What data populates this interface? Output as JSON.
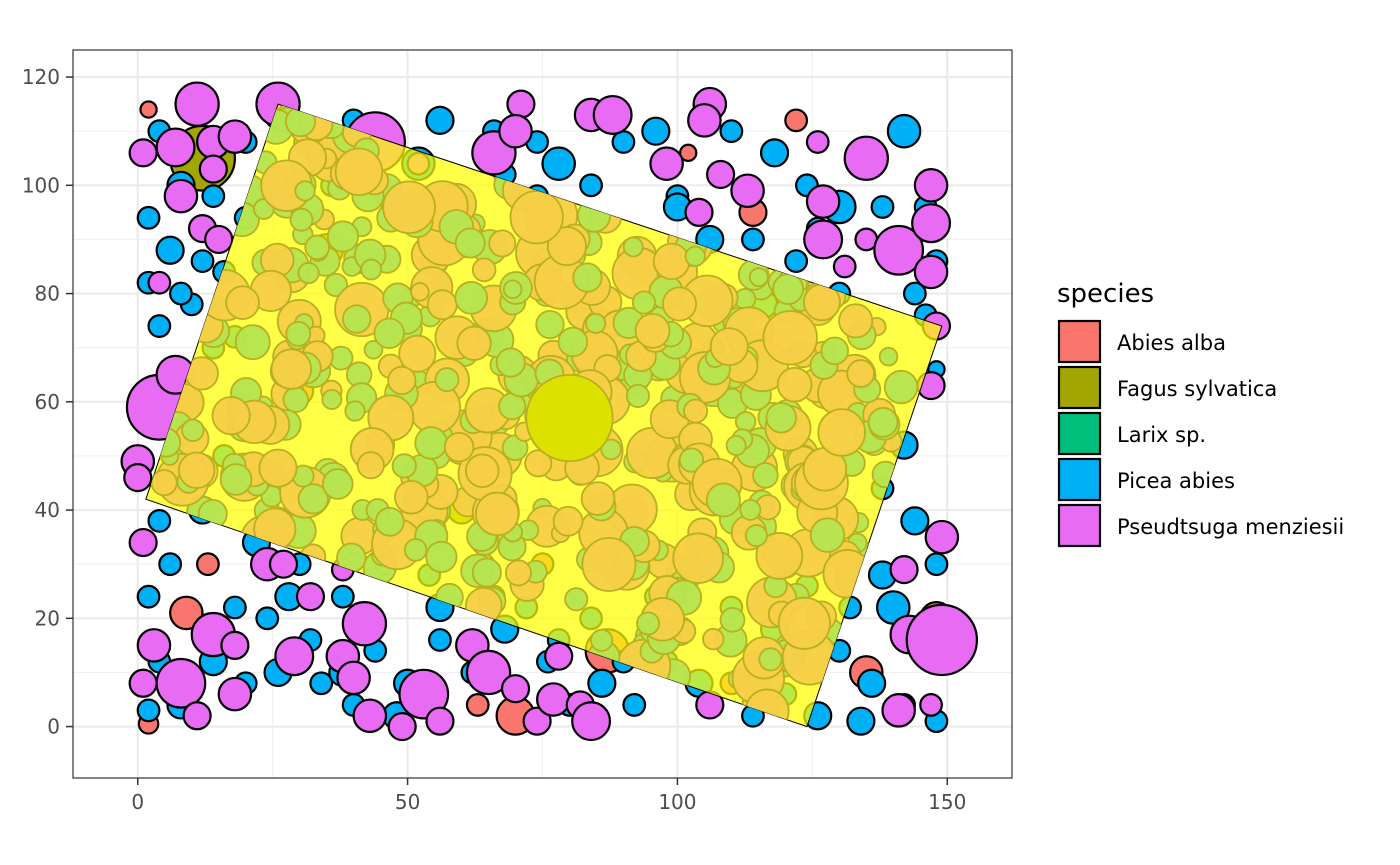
{
  "chart_data": {
    "type": "scatter",
    "title": "",
    "xlabel": "",
    "ylabel": "",
    "xlim": [
      -12,
      162
    ],
    "ylim": [
      -9.5,
      125
    ],
    "x_ticks": [
      0,
      50,
      100,
      150
    ],
    "y_ticks": [
      0,
      20,
      40,
      60,
      80,
      100,
      120
    ],
    "grid": true,
    "legend": {
      "title": "species",
      "position": "right",
      "entries": [
        {
          "name": "Abies alba",
          "color": "#F8766D"
        },
        {
          "name": "Fagus sylvatica",
          "color": "#A3A500"
        },
        {
          "name": "Larix sp.",
          "color": "#00BF7D"
        },
        {
          "name": "Picea abies",
          "color": "#00B0F6"
        },
        {
          "name": "Pseudtsuga menziesii",
          "color": "#E76BF3"
        }
      ]
    },
    "overlay_polygon": {
      "fill": "#FFFF00",
      "vertices": [
        [
          26,
          115
        ],
        [
          149,
          74
        ],
        [
          124,
          0
        ],
        [
          1.5,
          42
        ]
      ]
    },
    "overlay_colors": {
      "light": "#B5E550",
      "dark": "#F7CF47"
    },
    "series": [
      {
        "name": "Abies alba",
        "points": [
          [
            2,
            114,
            1.5
          ],
          [
            122,
            112,
            2
          ],
          [
            9,
            21,
            3
          ],
          [
            70,
            2,
            3.5
          ],
          [
            87,
            14,
            4
          ],
          [
            135,
            10,
            3
          ],
          [
            55,
            86,
            2.5
          ],
          [
            114,
            95,
            2.5
          ],
          [
            85,
            50,
            3
          ],
          [
            63,
            4,
            2
          ],
          [
            120,
            30,
            2.5
          ],
          [
            102,
            106,
            1.5
          ],
          [
            13,
            30,
            2
          ],
          [
            30,
            62,
            2.5
          ],
          [
            96,
            72,
            2
          ],
          [
            2,
            0.5,
            1.8
          ],
          [
            148,
            20,
            3
          ],
          [
            45,
            52,
            2.5
          ],
          [
            110,
            8,
            2
          ],
          [
            75,
            30,
            2
          ]
        ]
      },
      {
        "name": "Fagus sylvatica",
        "points": [
          [
            12,
            105,
            6
          ],
          [
            80,
            57,
            8
          ],
          [
            8,
            46,
            2.5
          ],
          [
            35,
            88,
            3
          ],
          [
            60,
            40,
            2.5
          ],
          [
            128,
            48,
            2.5
          ]
        ]
      },
      {
        "name": "Picea abies",
        "points": [
          [
            26,
            113,
            2.5
          ],
          [
            32,
            108,
            3
          ],
          [
            40,
            112,
            2
          ],
          [
            52,
            104,
            3
          ],
          [
            60,
            96,
            2.5
          ],
          [
            68,
            102,
            2
          ],
          [
            78,
            104,
            3
          ],
          [
            90,
            108,
            2
          ],
          [
            96,
            110,
            2.5
          ],
          [
            110,
            110,
            2
          ],
          [
            118,
            106,
            2.5
          ],
          [
            124,
            100,
            2
          ],
          [
            130,
            96,
            3
          ],
          [
            136,
            104,
            2.5
          ],
          [
            142,
            110,
            3
          ],
          [
            146,
            96,
            2
          ],
          [
            140,
            88,
            3
          ],
          [
            130,
            80,
            2
          ],
          [
            122,
            86,
            2
          ],
          [
            116,
            78,
            2.5
          ],
          [
            112,
            70,
            2
          ],
          [
            146,
            76,
            2
          ],
          [
            148,
            66,
            1.5
          ],
          [
            142,
            52,
            2.5
          ],
          [
            138,
            44,
            2
          ],
          [
            144,
            38,
            2.5
          ],
          [
            148,
            30,
            2
          ],
          [
            140,
            22,
            3
          ],
          [
            146,
            14,
            2
          ],
          [
            136,
            8,
            2.5
          ],
          [
            130,
            14,
            2
          ],
          [
            126,
            2,
            2.5
          ],
          [
            120,
            6,
            2
          ],
          [
            114,
            2,
            2
          ],
          [
            104,
            8,
            2.5
          ],
          [
            98,
            12,
            2
          ],
          [
            92,
            4,
            2
          ],
          [
            86,
            8,
            2.5
          ],
          [
            80,
            4,
            2
          ],
          [
            76,
            12,
            2
          ],
          [
            68,
            18,
            2.5
          ],
          [
            62,
            10,
            2
          ],
          [
            56,
            16,
            2
          ],
          [
            50,
            8,
            2.5
          ],
          [
            44,
            14,
            2
          ],
          [
            38,
            10,
            2.5
          ],
          [
            32,
            16,
            2
          ],
          [
            26,
            10,
            2.5
          ],
          [
            20,
            8,
            2
          ],
          [
            14,
            12,
            2.5
          ],
          [
            8,
            4,
            2.5
          ],
          [
            2,
            3,
            2
          ],
          [
            4,
            12,
            2
          ],
          [
            2,
            24,
            2
          ],
          [
            6,
            30,
            2
          ],
          [
            4,
            38,
            2
          ],
          [
            8,
            48,
            2
          ],
          [
            6,
            66,
            2
          ],
          [
            4,
            74,
            2
          ],
          [
            2,
            82,
            2
          ],
          [
            6,
            88,
            2.5
          ],
          [
            2,
            94,
            2
          ],
          [
            8,
            100,
            2.5
          ],
          [
            4,
            110,
            2
          ],
          [
            14,
            98,
            2
          ],
          [
            20,
            94,
            2
          ],
          [
            16,
            84,
            2
          ],
          [
            18,
            72,
            2
          ],
          [
            22,
            34,
            2.5
          ],
          [
            28,
            24,
            2.5
          ],
          [
            24,
            20,
            2
          ],
          [
            18,
            22,
            2
          ],
          [
            34,
            8,
            2
          ],
          [
            40,
            4,
            2
          ],
          [
            48,
            2,
            2.5
          ],
          [
            56,
            22,
            2.5
          ],
          [
            64,
            30,
            2
          ],
          [
            72,
            22,
            2
          ],
          [
            84,
            20,
            2
          ],
          [
            96,
            24,
            2
          ],
          [
            104,
            30,
            2.5
          ],
          [
            110,
            22,
            2
          ],
          [
            118,
            18,
            2.5
          ],
          [
            124,
            26,
            2
          ],
          [
            132,
            22,
            2
          ],
          [
            138,
            28,
            2.5
          ],
          [
            142,
            4,
            2
          ],
          [
            148,
            1,
            2
          ],
          [
            134,
            1,
            2.5
          ],
          [
            10,
            78,
            2
          ],
          [
            12,
            86,
            2
          ],
          [
            20,
            108,
            2
          ],
          [
            36,
            100,
            2
          ],
          [
            46,
            98,
            2
          ],
          [
            74,
            98,
            2
          ],
          [
            84,
            100,
            2
          ],
          [
            100,
            98,
            2
          ],
          [
            106,
            90,
            2.5
          ],
          [
            126,
            92,
            2
          ],
          [
            138,
            96,
            2
          ],
          [
            148,
            86,
            2
          ],
          [
            144,
            80,
            2
          ],
          [
            56,
            112,
            2.5
          ],
          [
            66,
            110,
            2
          ],
          [
            74,
            108,
            2
          ],
          [
            114,
            90,
            2
          ],
          [
            100,
            96,
            2.5
          ],
          [
            96,
            18,
            2
          ],
          [
            90,
            12,
            2
          ],
          [
            78,
            16,
            2
          ],
          [
            66,
            24,
            2
          ],
          [
            54,
            28,
            2
          ],
          [
            46,
            30,
            2
          ],
          [
            38,
            24,
            2
          ],
          [
            30,
            30,
            2
          ],
          [
            12,
            40,
            2.5
          ],
          [
            16,
            50,
            2
          ],
          [
            10,
            60,
            2
          ],
          [
            14,
            70,
            2
          ],
          [
            8,
            80,
            2
          ]
        ]
      },
      {
        "name": "Pseudtsuga menziesii",
        "points": [
          [
            11,
            115,
            4
          ],
          [
            7,
            107,
            3.5
          ],
          [
            14,
            108,
            3
          ],
          [
            18,
            109,
            3
          ],
          [
            1,
            106,
            2.5
          ],
          [
            8,
            98,
            3
          ],
          [
            14,
            103,
            2.5
          ],
          [
            12,
            92,
            2.5
          ],
          [
            15,
            90,
            2.5
          ],
          [
            4,
            82,
            2
          ],
          [
            26,
            115,
            4
          ],
          [
            44,
            108,
            5.5
          ],
          [
            52,
            104,
            2
          ],
          [
            66,
            106,
            4
          ],
          [
            71,
            115,
            2.5
          ],
          [
            70,
            110,
            3
          ],
          [
            84,
            113,
            3
          ],
          [
            88,
            113,
            3.5
          ],
          [
            98,
            104,
            3
          ],
          [
            104,
            95,
            2.5
          ],
          [
            106,
            115,
            3
          ],
          [
            105,
            112,
            3
          ],
          [
            108,
            102,
            2.5
          ],
          [
            113,
            99,
            3
          ],
          [
            126,
            108,
            2
          ],
          [
            135,
            105,
            4
          ],
          [
            127,
            97,
            3
          ],
          [
            127,
            90,
            3.5
          ],
          [
            135,
            90,
            2
          ],
          [
            131,
            85,
            2
          ],
          [
            141,
            88,
            4.5
          ],
          [
            147,
            100,
            3
          ],
          [
            147,
            93,
            3.5
          ],
          [
            147,
            84,
            3
          ],
          [
            148,
            74,
            2.5
          ],
          [
            147,
            63,
            2.5
          ],
          [
            4,
            59,
            6
          ],
          [
            7,
            65,
            3.5
          ],
          [
            0,
            49,
            3
          ],
          [
            0,
            46,
            2.5
          ],
          [
            1,
            34,
            2.5
          ],
          [
            24,
            30,
            3
          ],
          [
            27,
            30,
            2.5
          ],
          [
            32,
            24,
            2.5
          ],
          [
            38,
            29,
            2
          ],
          [
            142,
            29,
            2.5
          ],
          [
            149,
            35,
            3
          ],
          [
            141,
            3,
            3
          ],
          [
            147,
            4,
            2
          ],
          [
            143,
            17,
            3.5
          ],
          [
            149,
            16,
            6.5
          ],
          [
            3,
            15,
            3
          ],
          [
            1,
            8,
            2.5
          ],
          [
            8,
            8,
            4.5
          ],
          [
            14,
            17,
            4
          ],
          [
            18,
            15,
            2.5
          ],
          [
            11,
            2,
            2.5
          ],
          [
            18,
            6,
            3
          ],
          [
            29,
            13,
            3.5
          ],
          [
            38,
            13,
            3
          ],
          [
            40,
            9,
            3
          ],
          [
            42,
            19,
            4
          ],
          [
            43,
            2,
            3
          ],
          [
            49,
            0,
            2.5
          ],
          [
            53,
            6,
            4.5
          ],
          [
            56,
            1,
            2.5
          ],
          [
            62,
            15,
            3
          ],
          [
            65,
            10,
            4
          ],
          [
            70,
            7,
            2.5
          ],
          [
            74,
            1,
            2.5
          ],
          [
            77,
            5,
            3
          ],
          [
            78,
            13,
            2.5
          ],
          [
            82,
            4,
            2.5
          ],
          [
            84,
            1,
            3.5
          ],
          [
            106,
            4,
            2.5
          ]
        ]
      }
    ]
  }
}
